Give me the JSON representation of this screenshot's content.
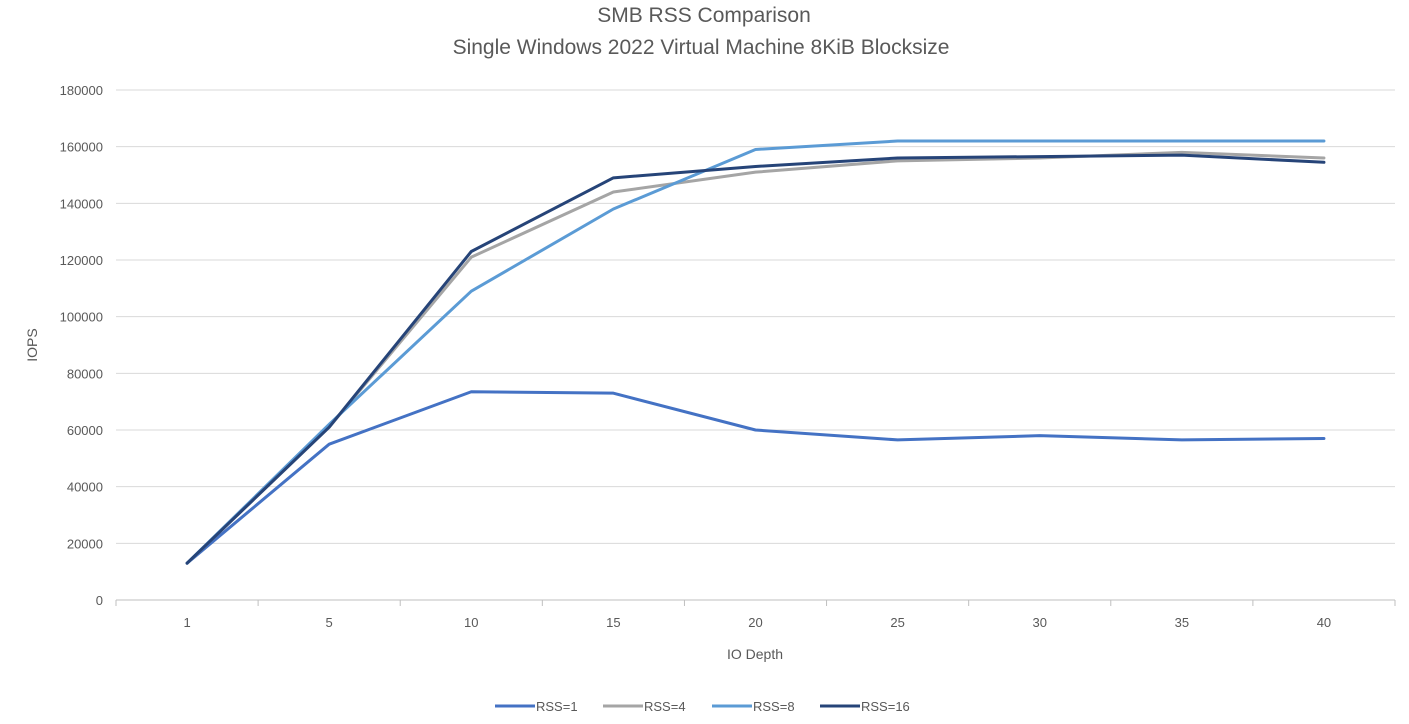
{
  "chart_data": {
    "type": "line",
    "title": "SMB RSS Comparison",
    "subtitle": "Single Windows 2022 Virtual Machine 8KiB Blocksize",
    "xlabel": "IO Depth",
    "ylabel": "IOPS",
    "categories": [
      "1",
      "5",
      "10",
      "15",
      "20",
      "25",
      "30",
      "35",
      "40"
    ],
    "ylim": [
      0,
      180000
    ],
    "yticks": [
      "0",
      "20000",
      "40000",
      "60000",
      "80000",
      "100000",
      "120000",
      "140000",
      "160000",
      "180000"
    ],
    "grid": true,
    "legend_position": "bottom",
    "series": [
      {
        "name": "RSS=1",
        "color": "#4472C4",
        "values": [
          13000,
          55000,
          73500,
          73000,
          60000,
          56500,
          58000,
          56500,
          57000
        ]
      },
      {
        "name": "RSS=4",
        "color": "#A5A5A5",
        "values": [
          13000,
          61000,
          121000,
          144000,
          151000,
          155000,
          156000,
          158000,
          156000
        ]
      },
      {
        "name": "RSS=8",
        "color": "#5B9BD5",
        "values": [
          13000,
          62000,
          109000,
          138000,
          159000,
          162000,
          162000,
          162000,
          162000
        ]
      },
      {
        "name": "RSS=16",
        "color": "#264478",
        "values": [
          13000,
          61000,
          123000,
          149000,
          153000,
          156000,
          156500,
          157000,
          154500
        ]
      }
    ]
  }
}
